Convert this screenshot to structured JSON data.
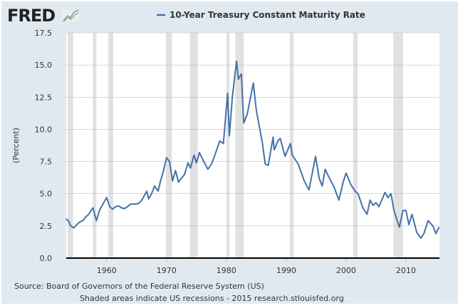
{
  "logo": {
    "text": "FRED"
  },
  "colors": {
    "background": "#e1e9f0",
    "line": "#4572a7",
    "recession": "#e1e1e1",
    "plot": "#ffffff"
  },
  "chart_data": {
    "type": "line",
    "title": "10-Year Treasury Constant Maturity Rate",
    "legend": "top-center",
    "ylabel": "(Percent)",
    "xlabel": "",
    "xlim": [
      1953.25,
      2015.6
    ],
    "ylim": [
      0,
      17.5
    ],
    "yticks": [
      "0.0",
      "2.5",
      "5.0",
      "7.5",
      "10.0",
      "12.5",
      "15.0",
      "17.5"
    ],
    "xticks": [
      "1960",
      "1970",
      "1980",
      "1990",
      "2000",
      "2010"
    ],
    "grid": true,
    "recessions": [
      [
        1953.5,
        1954.4
      ],
      [
        1957.7,
        1958.3
      ],
      [
        1960.3,
        1961.1
      ],
      [
        1969.9,
        1970.9
      ],
      [
        1973.9,
        1975.2
      ],
      [
        1980.0,
        1980.5
      ],
      [
        1981.5,
        1982.9
      ],
      [
        1990.6,
        1991.2
      ],
      [
        2001.2,
        2001.9
      ],
      [
        2007.9,
        2009.5
      ]
    ],
    "series": [
      {
        "name": "10-Year Treasury Constant Maturity Rate",
        "x": [
          1953.25,
          1953.6,
          1954,
          1954.5,
          1955,
          1955.5,
          1956,
          1956.5,
          1957,
          1957.7,
          1958.3,
          1958.8,
          1959.5,
          1960,
          1960.5,
          1961,
          1961.5,
          1962,
          1962.5,
          1963,
          1963.5,
          1964,
          1965,
          1965.5,
          1966,
          1966.7,
          1967,
          1967.5,
          1968,
          1968.6,
          1969,
          1969.5,
          1970,
          1970.5,
          1971,
          1971.5,
          1972,
          1972.5,
          1973,
          1973.6,
          1974,
          1974.6,
          1975,
          1975.5,
          1976,
          1976.9,
          1977.5,
          1978,
          1978.9,
          1979.5,
          1980.2,
          1980.5,
          1981,
          1981.7,
          1982,
          1982.5,
          1982.9,
          1983.5,
          1984.5,
          1985,
          1986,
          1986.5,
          1987,
          1987.8,
          1988,
          1988.6,
          1989,
          1989.8,
          1990.7,
          1991,
          1992,
          1993,
          1993.8,
          1994.9,
          1995.5,
          1996,
          1996.5,
          1997,
          1998,
          1998.8,
          1999.5,
          2000,
          2000.8,
          2001.5,
          2002,
          2002.8,
          2003.5,
          2004,
          2004.5,
          2005,
          2005.5,
          2006.5,
          2007,
          2007.5,
          2008,
          2008.9,
          2009.5,
          2010,
          2010.5,
          2011,
          2011.8,
          2012.5,
          2013,
          2013.7,
          2014.5,
          2015,
          2015.4,
          2015.6
        ],
        "values": [
          3.05,
          2.9,
          2.5,
          2.35,
          2.6,
          2.8,
          2.9,
          3.2,
          3.4,
          3.9,
          2.9,
          3.7,
          4.3,
          4.7,
          4.0,
          3.8,
          4.0,
          4.05,
          3.9,
          3.85,
          4.0,
          4.2,
          4.2,
          4.3,
          4.6,
          5.2,
          4.6,
          5.0,
          5.6,
          5.2,
          6.0,
          6.8,
          7.8,
          7.5,
          6.0,
          6.8,
          5.9,
          6.2,
          6.5,
          7.4,
          7.0,
          8.0,
          7.4,
          8.2,
          7.7,
          6.9,
          7.3,
          7.9,
          9.1,
          8.9,
          12.8,
          9.5,
          12.5,
          15.3,
          13.9,
          14.3,
          10.5,
          11.2,
          13.6,
          11.5,
          9.0,
          7.3,
          7.2,
          9.4,
          8.4,
          9.1,
          9.3,
          7.9,
          8.9,
          8.0,
          7.3,
          6.0,
          5.3,
          7.9,
          6.2,
          5.6,
          6.9,
          6.4,
          5.5,
          4.5,
          5.9,
          6.6,
          5.7,
          5.2,
          5.0,
          3.9,
          3.4,
          4.5,
          4.1,
          4.3,
          4.0,
          5.1,
          4.7,
          5.0,
          3.7,
          2.4,
          3.7,
          3.7,
          2.6,
          3.4,
          2.0,
          1.55,
          1.9,
          2.9,
          2.5,
          1.9,
          2.3,
          2.4
        ]
      }
    ]
  },
  "footer": {
    "source": "Source: Board of Governors of the Federal Reserve System (US)",
    "note": "Shaded areas indicate US recessions - 2015 research.stlouisfed.org"
  }
}
